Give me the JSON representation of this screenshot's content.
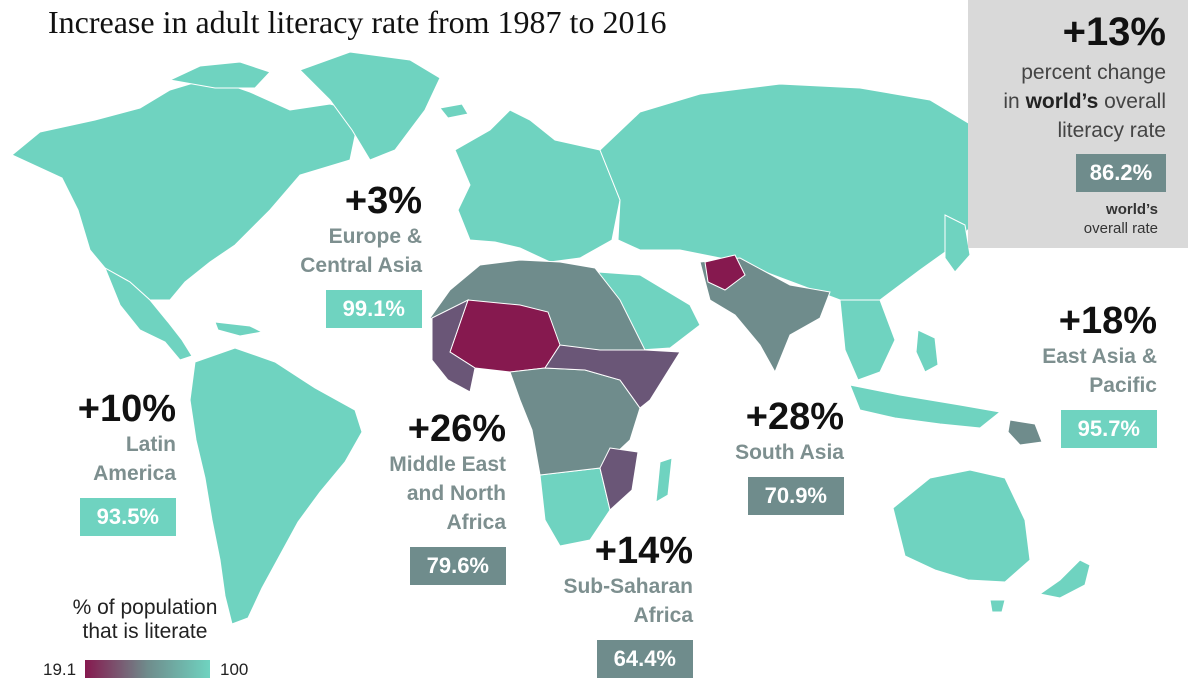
{
  "title": "Increase in adult literacy rate from 1987 to 2016",
  "colors": {
    "high": "#6fd3c0",
    "mid": "#6f8c8c",
    "low": "#86194f",
    "lowmid": "#6a5677",
    "lowest": "#8c1d52",
    "border": "#ffffff",
    "nodata": "#d9d9d9"
  },
  "world": {
    "pct": "+13%",
    "desc_line1": "percent change",
    "desc_line2_prefix": "in ",
    "desc_line2_bold": "world’s",
    "desc_line2_suffix": " overall",
    "desc_line3": "literacy rate",
    "rate": "86.2%",
    "sub_bold": "world’s",
    "sub_line2": "overall rate"
  },
  "regions": [
    {
      "id": "europe-central-asia",
      "pct": "+3%",
      "name": "Europe &\nCentral Asia",
      "rate": "99.1%",
      "color": "#6fd3c0"
    },
    {
      "id": "latin-america",
      "pct": "+10%",
      "name": "Latin\nAmerica",
      "rate": "93.5%",
      "color": "#6fd3c0"
    },
    {
      "id": "middle-east-north-africa",
      "pct": "+26%",
      "name": "Middle East\nand North\nAfrica",
      "rate": "79.6%",
      "color": "#6f8c8c"
    },
    {
      "id": "sub-saharan-africa",
      "pct": "+14%",
      "name": "Sub-Saharan\nAfrica",
      "rate": "64.4%",
      "color": "#6f8c8c"
    },
    {
      "id": "south-asia",
      "pct": "+28%",
      "name": "South Asia",
      "rate": "70.9%",
      "color": "#6f8c8c"
    },
    {
      "id": "east-asia-pacific",
      "pct": "+18%",
      "name": "East Asia &\nPacific",
      "rate": "95.7%",
      "color": "#6fd3c0"
    }
  ],
  "legend": {
    "title": "% of population\nthat is literate",
    "min": "19.1",
    "max": "100",
    "gradient": [
      "#86194f",
      "#6f8c8c",
      "#6fd3c0"
    ]
  }
}
